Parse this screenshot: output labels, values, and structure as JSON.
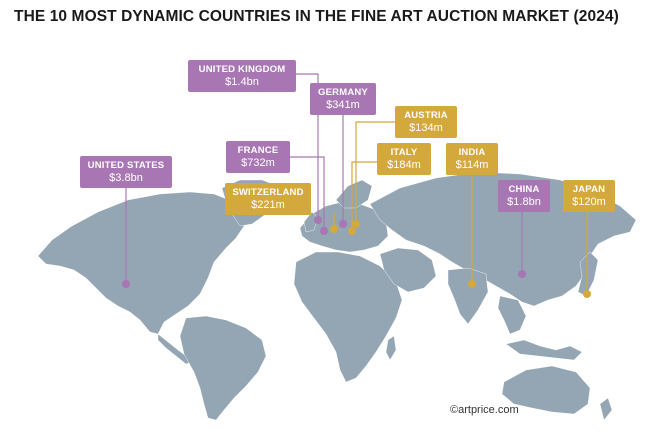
{
  "title": "THE 10 MOST DYNAMIC COUNTRIES IN THE FINE ART AUCTION MARKET (2024)",
  "credit": "©artprice.com",
  "colors": {
    "map": "#94a5b4",
    "purple": "#a877b3",
    "gold": "#d4a93b"
  },
  "countries": [
    {
      "name": "UNITED KINGDOM",
      "value": "$1.4bn",
      "color": "purple"
    },
    {
      "name": "GERMANY",
      "value": "$341m",
      "color": "purple"
    },
    {
      "name": "AUSTRIA",
      "value": "$134m",
      "color": "gold"
    },
    {
      "name": "FRANCE",
      "value": "$732m",
      "color": "purple"
    },
    {
      "name": "ITALY",
      "value": "$184m",
      "color": "gold"
    },
    {
      "name": "INDIA",
      "value": "$114m",
      "color": "gold"
    },
    {
      "name": "UNITED STATES",
      "value": "$3.8bn",
      "color": "purple"
    },
    {
      "name": "SWITZERLAND",
      "value": "$221m",
      "color": "gold"
    },
    {
      "name": "CHINA",
      "value": "$1.8bn",
      "color": "purple"
    },
    {
      "name": "JAPAN",
      "value": "$120m",
      "color": "gold"
    }
  ]
}
